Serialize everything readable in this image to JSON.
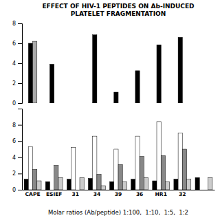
{
  "chart_data": [
    {
      "type": "bar",
      "title": "EFFECT OF HIV-1 PEPTIDES ON Ab-INDUCED",
      "subtitle": "PLATELET FRAGMENTATION",
      "categories": [
        "CAPE",
        "ESIEF",
        "31",
        "34",
        "39",
        "36",
        "HR1",
        "32",
        null
      ],
      "series": [
        {
          "color": "#000000",
          "values": [
            6.0,
            3.9,
            0.0,
            6.85,
            1.1,
            3.25,
            5.85,
            6.6,
            0.0
          ]
        },
        {
          "color": "#aaaaaa",
          "values": [
            6.2,
            0.0,
            0.0,
            0.0,
            0.0,
            0.0,
            0.0,
            0.0,
            0.0
          ]
        }
      ],
      "ylim": [
        0,
        8
      ],
      "yticks": [
        0,
        2,
        4,
        6,
        8
      ],
      "tick_labels": "y"
    },
    {
      "type": "bar",
      "xlabel": "Molar ratios (Ab/peptide) 1:100,  1:10,  1:5,  1:2",
      "categories": [
        "CAPE",
        "ESIEF",
        "31",
        "34",
        "39",
        "36",
        "HR1",
        "32",
        null
      ],
      "series": [
        {
          "color": "#000000",
          "values": [
            1.3,
            1.0,
            1.3,
            1.4,
            1.0,
            1.3,
            1.1,
            1.3,
            1.5
          ]
        },
        {
          "color": "#ffffff",
          "values": [
            5.3,
            0.0,
            5.2,
            6.6,
            5.0,
            6.6,
            8.4,
            7.0,
            0.0
          ]
        },
        {
          "color": "#888888",
          "values": [
            2.5,
            3.0,
            0.0,
            1.9,
            3.1,
            4.1,
            4.2,
            5.0,
            0.0
          ]
        },
        {
          "color": "#cccccc",
          "values": [
            1.1,
            1.5,
            1.5,
            0.5,
            1.0,
            1.5,
            1.0,
            1.3,
            1.5
          ]
        }
      ],
      "ylim": [
        0,
        10
      ],
      "yticks": [
        0,
        2,
        4,
        6,
        8
      ]
    }
  ]
}
